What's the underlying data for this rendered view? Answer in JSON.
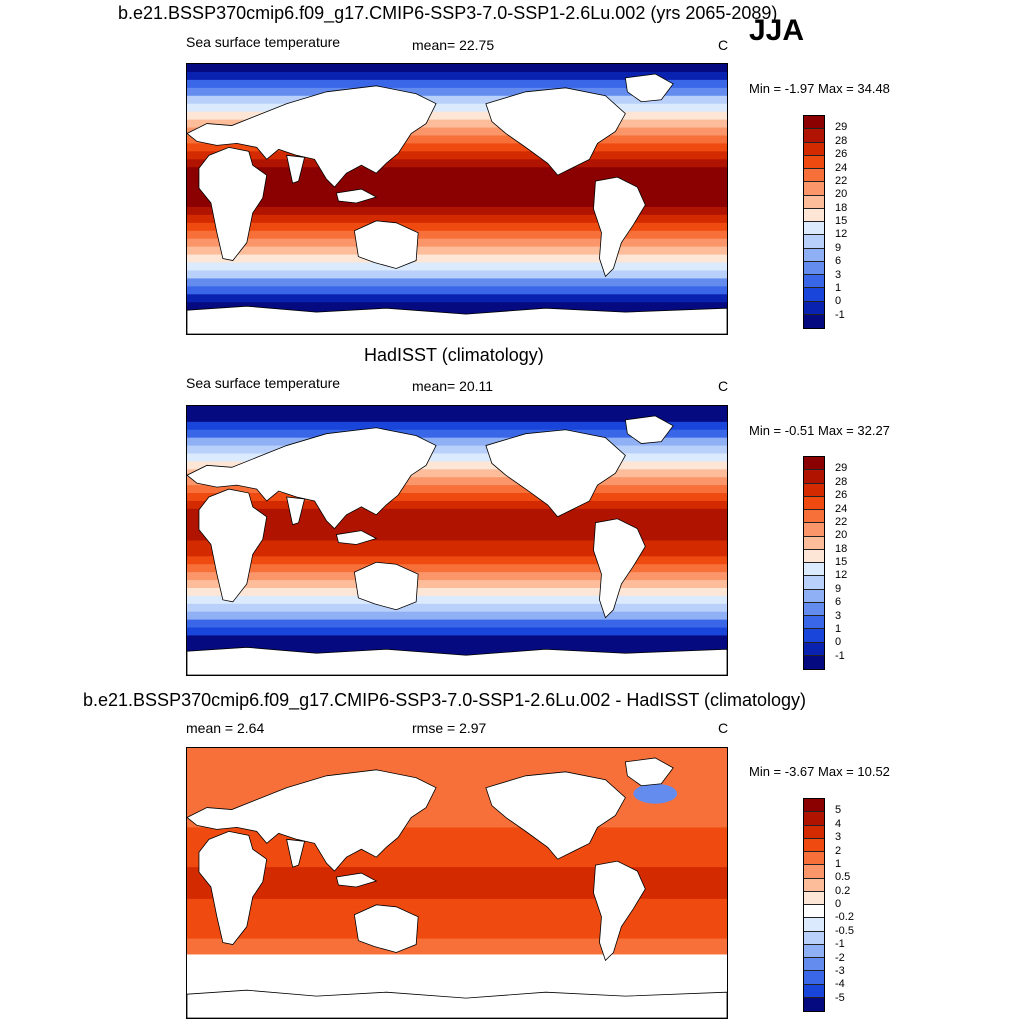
{
  "season": "JJA",
  "panels": [
    {
      "title": "b.e21.BSSP370cmip6.f09_g17.CMIP6-SSP3-7.0-SSP1-2.6Lu.002 (yrs 2065-2089)",
      "left_label": "Sea surface temperature",
      "center_label": "mean=  22.75",
      "units": "C",
      "minmax": "Min =  -1.97 Max =  34.48",
      "levels": [
        "29",
        "28",
        "26",
        "24",
        "22",
        "20",
        "18",
        "15",
        "12",
        "9",
        "6",
        "3",
        "1",
        "0",
        "-1"
      ],
      "colors": [
        "#8b0000",
        "#b01400",
        "#d42a00",
        "#ef4a10",
        "#f7703a",
        "#fb966a",
        "#fdbd9a",
        "#fde6d6",
        "#dceafd",
        "#b8d0fa",
        "#8fb0f4",
        "#638cee",
        "#3a66e8",
        "#1a45da",
        "#0a22b0",
        "#050a80"
      ],
      "field": "model"
    },
    {
      "title": "HadISST (climatology)",
      "left_label": "Sea surface temperature",
      "center_label": "mean=  20.11",
      "units": "C",
      "minmax": "Min =  -0.51 Max =  32.27",
      "levels": [
        "29",
        "28",
        "26",
        "24",
        "22",
        "20",
        "18",
        "15",
        "12",
        "9",
        "6",
        "3",
        "1",
        "0",
        "-1"
      ],
      "colors": [
        "#8b0000",
        "#b01400",
        "#d42a00",
        "#ef4a10",
        "#f7703a",
        "#fb966a",
        "#fdbd9a",
        "#fde6d6",
        "#dceafd",
        "#b8d0fa",
        "#8fb0f4",
        "#638cee",
        "#3a66e8",
        "#1a45da",
        "#0a22b0",
        "#050a80"
      ],
      "field": "obs"
    },
    {
      "title": "b.e21.BSSP370cmip6.f09_g17.CMIP6-SSP3-7.0-SSP1-2.6Lu.002 - HadISST (climatology)",
      "left_label": "mean =   2.64",
      "center_label": "rmse =   2.97",
      "units": "C",
      "minmax": "Min =  -3.67 Max =  10.52",
      "levels": [
        "5",
        "4",
        "3",
        "2",
        "1",
        "0.5",
        "0.2",
        "0",
        "-0.2",
        "-0.5",
        "-1",
        "-2",
        "-3",
        "-4",
        "-5"
      ],
      "colors": [
        "#8b0000",
        "#b01400",
        "#d42a00",
        "#ef4a10",
        "#f7703a",
        "#fb966a",
        "#fdbd9a",
        "#fde6d6",
        "#ffffff",
        "#dceafd",
        "#b8d0fa",
        "#8fb0f4",
        "#638cee",
        "#3a66e8",
        "#1a45da",
        "#050a80"
      ],
      "field": "diff"
    }
  ]
}
